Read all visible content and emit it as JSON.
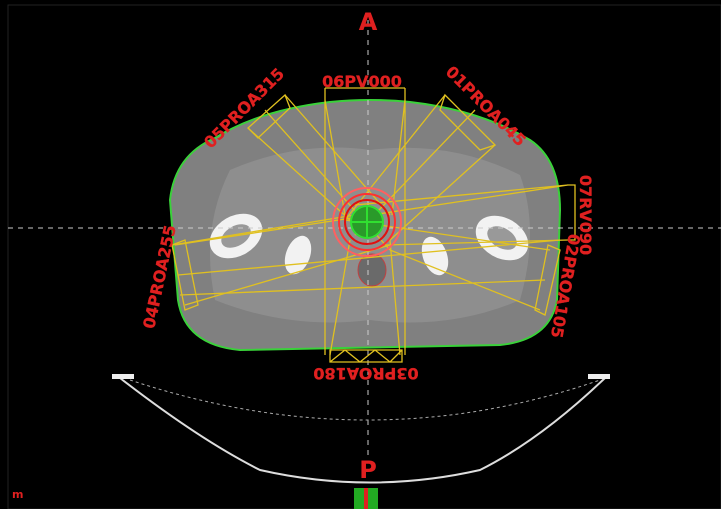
{
  "orientation": {
    "anterior": "A",
    "posterior": "P"
  },
  "beams": [
    {
      "label": "06PV000"
    },
    {
      "label": "01PROA045"
    },
    {
      "label": "07RV090"
    },
    {
      "label": "02PROA105"
    },
    {
      "label": "03PROA180"
    },
    {
      "label": "04PROA255"
    },
    {
      "label": "05PROA315"
    }
  ],
  "corner_label": "m"
}
